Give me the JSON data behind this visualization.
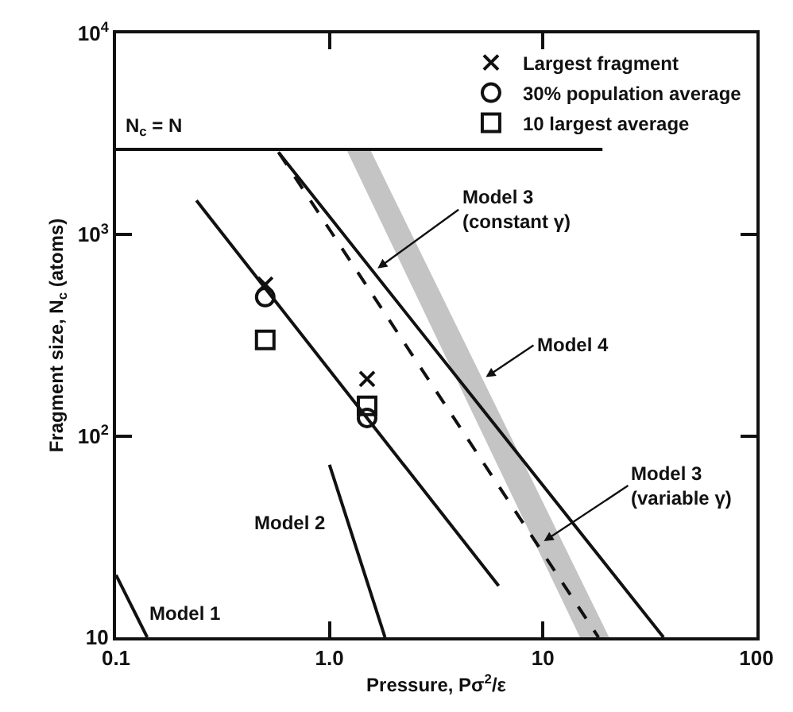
{
  "chart_data": {
    "type": "line",
    "xlabel": "Pressure, Pσ$^{2}$/ε",
    "ylabel": "Fragment size, N$_{c}$ (atoms)",
    "log": "xy",
    "grid": false,
    "legend": "top right",
    "xlim": [
      0.1,
      100
    ],
    "xticks": [
      0.1,
      {
        "value": 1,
        "label": "1.0"
      },
      10,
      100
    ],
    "ylim": [
      10,
      10000
    ],
    "yticks": [
      10,
      {
        "value": 100,
        "label": "10$^{2}$"
      },
      {
        "value": 1000,
        "label": "10$^{3}$"
      },
      {
        "value": 10000,
        "label": "10$^{4}$"
      }
    ],
    "series": [
      {
        "type": "area",
        "color": "#c4c4c4",
        "x": [
          1.2,
          1.55,
          20.4,
          14.9
        ],
        "values": [
          2650,
          2650,
          10,
          10
        ]
      },
      {
        "color": "#111111",
        "line_style": "solid",
        "x": [
          0.1,
          19
        ],
        "values": [
          2650,
          2650
        ]
      },
      {
        "color": "#111111",
        "line_style": "solid",
        "x": [
          0.1,
          0.14
        ],
        "values": [
          20.4,
          10
        ]
      },
      {
        "color": "#111111",
        "line_style": "solid",
        "x": [
          1.0,
          1.82
        ],
        "values": [
          72,
          10
        ]
      },
      {
        "color": "#111111",
        "line_style": "solid",
        "x": [
          0.238,
          6.2
        ],
        "values": [
          1480,
          18
        ]
      },
      {
        "color": "#111111",
        "line_style": "solid",
        "x": [
          0.576,
          36.7
        ],
        "values": [
          2570,
          10
        ]
      },
      {
        "color": "#111111",
        "line_style": "dashed",
        "x": [
          0.58,
          18.2
        ],
        "values": [
          2550,
          10
        ]
      },
      {
        "type": "scatter",
        "name": "Largest fragment",
        "color": "#111111",
        "marker": "cross",
        "x": [
          0.5,
          1.5
        ],
        "values": [
          565,
          192
        ]
      },
      {
        "type": "scatter",
        "name": "30% population average",
        "color": "#111111",
        "marker": "circle",
        "x": [
          0.5,
          1.5
        ],
        "values": [
          490,
          123
        ]
      },
      {
        "type": "scatter",
        "name": "10 largest average",
        "color": "#111111",
        "marker": "square",
        "x": [
          0.5,
          1.5
        ],
        "values": [
          300,
          141
        ]
      }
    ],
    "annotations": [
      "N$_{c}$ = N",
      "Model 1",
      "Model 2",
      {
        "text": "Model 3\n(constant γ)",
        "x": 1.68,
        "y": 680
      },
      {
        "text": "Model 4",
        "x": 5.4,
        "y": 196
      },
      {
        "text": "Model 3\n(variable γ)",
        "x": 10.1,
        "y": 30
      }
    ]
  }
}
